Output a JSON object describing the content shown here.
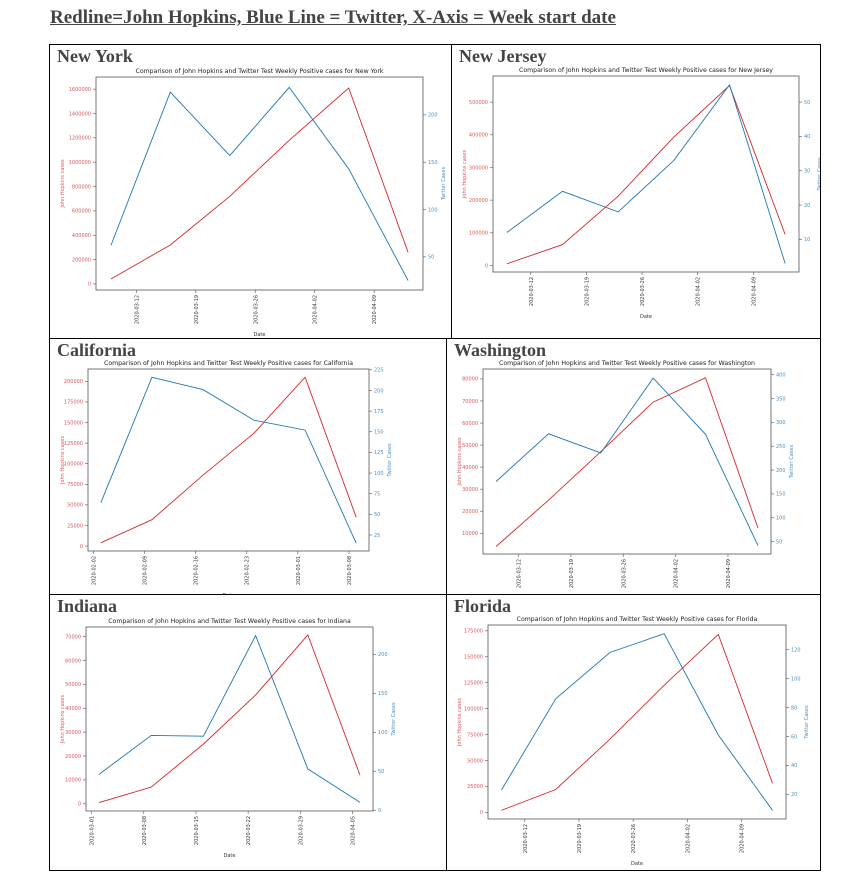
{
  "doc_title": "Redline=John Hopkins, Blue Line = Twitter, X-Axis = Week start date",
  "colors": {
    "john_hopkins": "#d62728",
    "twitter": "#1f77b4",
    "jh_tick": "#d9595a",
    "tw_tick": "#4a8fc4"
  },
  "chart_data": [
    {
      "type": "line",
      "state": "New York",
      "title": "Comparison of John Hopkins and Twitter Test Weekly Positive cases for New York",
      "xlabel": "Date",
      "ylabel_left": "John Hopkins cases",
      "ylabel_right": "Twitter Cases",
      "x": [
        "2020-03-09",
        "2020-03-16",
        "2020-03-23",
        "2020-03-30",
        "2020-04-06",
        "2020-04-13"
      ],
      "xticks": [
        "2020-03-12",
        "2020-03-19",
        "2020-03-26",
        "2020-04-02",
        "2020-04-09"
      ],
      "series": [
        {
          "name": "John Hopkins",
          "axis": "left",
          "values": [
            40000,
            320000,
            720000,
            1180000,
            1610000,
            260000
          ]
        },
        {
          "name": "Twitter",
          "axis": "right",
          "values": [
            62,
            224,
            157,
            229,
            143,
            25
          ]
        }
      ],
      "ylim_left": [
        -50000,
        1700000
      ],
      "yticks_left": [
        0,
        200000,
        400000,
        600000,
        800000,
        1000000,
        1200000,
        1400000,
        1600000
      ],
      "ylim_right": [
        15,
        240
      ],
      "yticks_right": [
        50,
        100,
        150,
        200
      ]
    },
    {
      "type": "line",
      "state": "New Jersey",
      "title": "Comparison of John Hopkins and Twitter Test Weekly Positive cases for New Jersey",
      "xlabel": "Date",
      "ylabel_left": "John Hopkins cases",
      "ylabel_right": "Twitter Cases",
      "x": [
        "2020-03-09",
        "2020-03-16",
        "2020-03-23",
        "2020-03-30",
        "2020-04-06",
        "2020-04-13"
      ],
      "xticks": [
        "2020-03-12",
        "2020-03-19",
        "2020-03-26",
        "2020-04-02",
        "2020-04-09"
      ],
      "series": [
        {
          "name": "John Hopkins",
          "axis": "left",
          "values": [
            5000,
            64000,
            212000,
            393000,
            551000,
            95000
          ]
        },
        {
          "name": "Twitter",
          "axis": "right",
          "values": [
            12,
            24,
            18,
            33,
            55,
            3
          ]
        }
      ],
      "ylim_left": [
        -20000,
        580000
      ],
      "yticks_left": [
        0,
        100000,
        200000,
        300000,
        400000,
        500000
      ],
      "ylim_right": [
        0.5,
        57.6
      ],
      "yticks_right": [
        10,
        20,
        30,
        40,
        50
      ]
    },
    {
      "type": "line",
      "state": "California",
      "title": "Comparison of John Hopkins and Twitter Test Weekly Positive cases for California",
      "xlabel": "Date",
      "ylabel_left": "John Hopkins cases",
      "ylabel_right": "Twitter Cases",
      "x": [
        "2020-02-03",
        "2020-02-10",
        "2020-02-17",
        "2020-02-24",
        "2020-03-02",
        "2020-03-09"
      ],
      "xticks": [
        "2020-02-02",
        "2020-02-09",
        "2020-02-16",
        "2020-02-23",
        "2020-03-01",
        "2020-03-08"
      ],
      "series": [
        {
          "name": "John Hopkins",
          "axis": "left",
          "values": [
            4000,
            32000,
            86000,
            137000,
            205000,
            35000
          ]
        },
        {
          "name": "Twitter",
          "axis": "right",
          "values": [
            64,
            216,
            201,
            164,
            152,
            15
          ]
        }
      ],
      "ylim_left": [
        -6000,
        215000
      ],
      "yticks_left": [
        0,
        25000,
        50000,
        75000,
        100000,
        125000,
        150000,
        175000,
        200000
      ],
      "ylim_right": [
        5.6,
        226
      ],
      "yticks_right": [
        25,
        50,
        75,
        100,
        125,
        150,
        175,
        200,
        225
      ]
    },
    {
      "type": "line",
      "state": "Washington",
      "title": "Comparison of John Hopkins and Twitter Test Weekly Positive cases for Washington",
      "xlabel": "Date",
      "ylabel_left": "John Hopkins cases",
      "ylabel_right": "Twitter Cases",
      "x": [
        "2020-03-09",
        "2020-03-16",
        "2020-03-23",
        "2020-03-30",
        "2020-04-06",
        "2020-04-13"
      ],
      "xticks": [
        "2020-03-12",
        "2020-03-19",
        "2020-03-26",
        "2020-04-02",
        "2020-04-09"
      ],
      "series": [
        {
          "name": "John Hopkins",
          "axis": "left",
          "values": [
            4000,
            25000,
            47000,
            69500,
            80500,
            12500
          ]
        },
        {
          "name": "Twitter",
          "axis": "right",
          "values": [
            176,
            276,
            236,
            393,
            275,
            42
          ]
        }
      ],
      "ylim_left": [
        600,
        84500
      ],
      "yticks_left": [
        10000,
        20000,
        30000,
        40000,
        50000,
        60000,
        70000,
        80000
      ],
      "ylim_right": [
        24,
        412
      ],
      "yticks_right": [
        50,
        100,
        150,
        200,
        250,
        300,
        350,
        400
      ]
    },
    {
      "type": "line",
      "state": "Indiana",
      "title": "Comparison of John Hopkins and Twitter Test Weekly Positive cases for Indiana",
      "xlabel": "Date",
      "ylabel_left": "John Hopkins cases",
      "ylabel_right": "Twitter Cases",
      "x": [
        "2020-03-02",
        "2020-03-09",
        "2020-03-16",
        "2020-03-23",
        "2020-03-30",
        "2020-04-06"
      ],
      "xticks": [
        "2020-03-01",
        "2020-03-08",
        "2020-03-15",
        "2020-03-22",
        "2020-03-29",
        "2020-04-05"
      ],
      "series": [
        {
          "name": "John Hopkins",
          "axis": "left",
          "values": [
            500,
            7000,
            25000,
            45500,
            70700,
            12000
          ]
        },
        {
          "name": "Twitter",
          "axis": "right",
          "values": [
            46,
            96,
            95,
            224,
            53,
            10
          ]
        }
      ],
      "ylim_left": [
        -3000,
        74000
      ],
      "yticks_left": [
        0,
        10000,
        20000,
        30000,
        40000,
        50000,
        60000,
        70000
      ],
      "ylim_right": [
        -1,
        235
      ],
      "yticks_right": [
        0,
        50,
        100,
        150,
        200
      ]
    },
    {
      "type": "line",
      "state": "Florida",
      "title": "Comparison of John Hopkins and Twitter Test Weekly Positive cases for Florida",
      "xlabel": "Date",
      "ylabel_left": "John Hopkins cases",
      "ylabel_right": "Twitter Cases",
      "x": [
        "2020-03-09",
        "2020-03-16",
        "2020-03-23",
        "2020-03-30",
        "2020-04-06",
        "2020-04-13"
      ],
      "xticks": [
        "2020-03-12",
        "2020-03-19",
        "2020-03-26",
        "2020-04-02",
        "2020-04-09"
      ],
      "series": [
        {
          "name": "John Hopkins",
          "axis": "left",
          "values": [
            2000,
            22000,
            70500,
            122500,
            171500,
            28000
          ]
        },
        {
          "name": "Twitter",
          "axis": "right",
          "values": [
            23,
            86,
            118,
            131,
            61,
            9
          ]
        }
      ],
      "ylim_left": [
        -6400,
        180600
      ],
      "yticks_left": [
        0,
        25000,
        50000,
        75000,
        100000,
        125000,
        150000,
        175000
      ],
      "ylim_right": [
        3,
        137
      ],
      "yticks_right": [
        20,
        40,
        60,
        80,
        100,
        120
      ]
    }
  ]
}
